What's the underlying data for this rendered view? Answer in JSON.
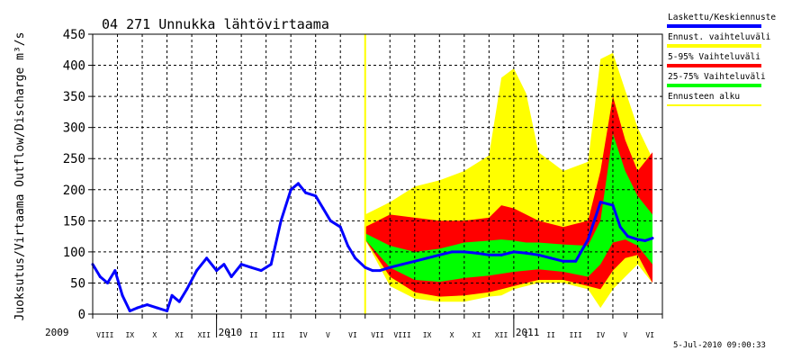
{
  "chart_data": {
    "type": "area",
    "title": "04 271 Unnukka lähtövirtaama",
    "ylabel": "Juoksutus/Virtaama Outflow/Discharge m³/s",
    "ylim": [
      0,
      450
    ],
    "yticks": [
      0,
      50,
      100,
      150,
      200,
      250,
      300,
      350,
      400,
      450
    ],
    "grid": true,
    "legend_position": "right",
    "timestamp": "5-Jul-2010 09:00:33",
    "year_labels": [
      "2009",
      "2010",
      "2011"
    ],
    "month_labels": [
      "VIII",
      "IX",
      "X",
      "XI",
      "XII",
      "I",
      "II",
      "III",
      "IV",
      "V",
      "VI",
      "VII",
      "VIII",
      "IX",
      "X",
      "XI",
      "XII",
      "I",
      "II",
      "III",
      "IV",
      "V",
      "VI"
    ],
    "forecast_start_month": 11,
    "legend": [
      {
        "label": "Laskettu/Keskiennuste",
        "color": "#0000ff"
      },
      {
        "label": "Ennust. vaihteluväli",
        "color": "#ffff00"
      },
      {
        "label": "5-95% Vaihteluväli",
        "color": "#ff0000"
      },
      {
        "label": "25-75% Vaihteluväli",
        "color": "#00ff00"
      },
      {
        "label": "Ennusteen alku",
        "color": "#ffff00"
      }
    ],
    "series": [
      {
        "name": "Laskettu/Keskiennuste",
        "x": [
          0,
          0.3,
          0.6,
          0.9,
          1.2,
          1.5,
          1.8,
          2.2,
          2.6,
          3.0,
          3.2,
          3.5,
          3.8,
          4.2,
          4.6,
          5.0,
          5.3,
          5.6,
          6.0,
          6.4,
          6.8,
          7.2,
          7.6,
          8.0,
          8.3,
          8.6,
          9.0,
          9.3,
          9.6,
          10.0,
          10.3,
          10.6,
          11.0,
          11.3,
          11.6,
          12.0,
          12.5,
          13.0,
          13.5,
          14.0,
          14.5,
          15.0,
          15.5,
          16.0,
          16.5,
          17.0,
          17.5,
          18.0,
          18.5,
          19.0,
          19.5,
          20.0,
          20.5,
          21.0,
          21.3,
          21.6,
          22.0,
          22.3,
          22.6
        ],
        "values": [
          80,
          60,
          50,
          70,
          30,
          5,
          10,
          15,
          10,
          5,
          30,
          20,
          40,
          70,
          90,
          70,
          80,
          60,
          80,
          75,
          70,
          80,
          150,
          200,
          210,
          195,
          190,
          170,
          150,
          140,
          110,
          90,
          75,
          70,
          70,
          75,
          80,
          85,
          90,
          95,
          100,
          100,
          98,
          95,
          95,
          100,
          98,
          95,
          90,
          85,
          85,
          120,
          180,
          175,
          140,
          125,
          120,
          118,
          122
        ]
      },
      {
        "name": "Ennust. vaihteluväli",
        "x": [
          11.0,
          12.0,
          13.0,
          14.0,
          15.0,
          16.0,
          16.5,
          17.0,
          17.5,
          18.0,
          19.0,
          20.0,
          20.5,
          21.0,
          21.5,
          22.0,
          22.6
        ],
        "upper": [
          160,
          180,
          205,
          215,
          230,
          255,
          380,
          395,
          355,
          260,
          230,
          245,
          410,
          420,
          360,
          300,
          250
        ],
        "lower": [
          120,
          45,
          25,
          20,
          20,
          28,
          30,
          40,
          45,
          50,
          50,
          40,
          10,
          40,
          60,
          80,
          50
        ]
      },
      {
        "name": "5-95% Vaihteluväli",
        "x": [
          11.0,
          12.0,
          13.0,
          14.0,
          15.0,
          16.0,
          16.5,
          17.0,
          17.5,
          18.0,
          19.0,
          20.0,
          20.5,
          21.0,
          21.5,
          22.0,
          22.6
        ],
        "upper": [
          140,
          160,
          155,
          150,
          150,
          155,
          175,
          170,
          160,
          150,
          140,
          150,
          230,
          350,
          280,
          230,
          260
        ],
        "lower": [
          120,
          60,
          35,
          28,
          30,
          35,
          40,
          45,
          50,
          55,
          55,
          45,
          40,
          70,
          90,
          95,
          50
        ]
      },
      {
        "name": "25-75% Vaihteluväli",
        "x": [
          11.0,
          12.0,
          13.0,
          14.0,
          15.0,
          16.0,
          16.5,
          17.0,
          17.5,
          18.0,
          19.0,
          20.0,
          20.5,
          21.0,
          21.5,
          22.0,
          22.6
        ],
        "upper": [
          130,
          110,
          100,
          105,
          115,
          118,
          120,
          118,
          115,
          115,
          112,
          110,
          150,
          290,
          230,
          190,
          160
        ],
        "lower": [
          120,
          75,
          55,
          52,
          58,
          62,
          65,
          68,
          70,
          72,
          68,
          60,
          80,
          115,
          120,
          110,
          80
        ]
      }
    ]
  }
}
